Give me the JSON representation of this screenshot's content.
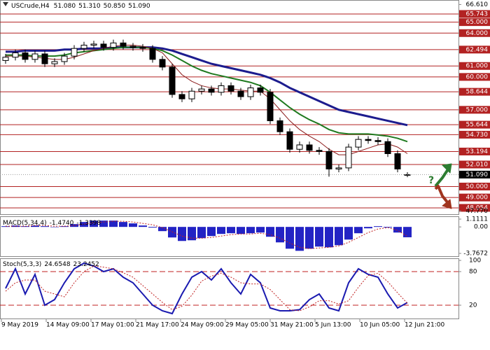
{
  "header": {
    "symbol": "USCrude,H4",
    "ohlc": [
      "51.080",
      "51.310",
      "50.850",
      "51.090"
    ]
  },
  "time_axis": [
    "9 May 2019",
    "14 May 09:00",
    "17 May 01:00",
    "21 May 17:00",
    "24 May 09:00",
    "29 May 05:00",
    "31 May 21:00",
    "5 Jun 13:00",
    "10 Jun 05:00",
    "12 Jun 21:00"
  ],
  "annotations": [
    "?"
  ],
  "chart_data": [
    {
      "type": "candlestick",
      "open": [
        61.5,
        61.8,
        62.2,
        61.6,
        62.1,
        61.2,
        61.4,
        61.9,
        62.6,
        62.9,
        63.0,
        62.7,
        63.1,
        62.8,
        62.7,
        62.6,
        61.6,
        60.9,
        58.4,
        58.0,
        58.7,
        58.9,
        58.6,
        59.2,
        58.7,
        58.2,
        59.0,
        58.6,
        56.0,
        55.0,
        53.4,
        53.8,
        53.3,
        53.2,
        51.6,
        51.7,
        53.6,
        54.3,
        54.2,
        54.1,
        53.0,
        51.08
      ],
      "high": [
        62.1,
        62.5,
        62.5,
        62.4,
        62.4,
        61.7,
        62.2,
        62.9,
        63.2,
        63.3,
        63.3,
        63.4,
        63.4,
        63.1,
        63.0,
        62.9,
        61.9,
        61.2,
        58.7,
        59.0,
        59.2,
        59.2,
        59.5,
        59.5,
        59.0,
        59.3,
        59.3,
        58.9,
        56.3,
        55.3,
        54.1,
        54.1,
        53.6,
        53.5,
        52.0,
        53.9,
        54.6,
        54.6,
        54.5,
        54.4,
        53.3,
        51.31
      ],
      "low": [
        61.2,
        61.5,
        61.3,
        61.3,
        60.9,
        60.9,
        61.1,
        61.6,
        62.3,
        62.6,
        62.4,
        62.4,
        62.5,
        62.4,
        62.3,
        61.3,
        60.6,
        58.1,
        57.7,
        57.7,
        58.4,
        58.3,
        58.3,
        58.4,
        57.9,
        57.9,
        58.3,
        55.7,
        54.7,
        53.1,
        53.1,
        53.0,
        52.9,
        50.9,
        51.3,
        51.4,
        53.3,
        53.9,
        53.8,
        52.7,
        51.3,
        50.85
      ],
      "close": [
        61.8,
        62.2,
        61.6,
        62.1,
        61.2,
        61.4,
        61.9,
        62.6,
        62.9,
        63.0,
        62.7,
        63.1,
        62.8,
        62.7,
        62.6,
        61.6,
        60.9,
        58.4,
        58.0,
        58.7,
        58.9,
        58.6,
        59.2,
        58.7,
        58.2,
        59.0,
        58.6,
        56.0,
        55.0,
        53.4,
        53.8,
        53.3,
        53.2,
        51.6,
        51.7,
        53.6,
        54.3,
        54.2,
        54.1,
        53.0,
        51.6,
        51.09
      ],
      "series": [
        {
          "color": "#1c1c8e",
          "values": [
            62.3,
            62.3,
            62.4,
            62.4,
            62.4,
            62.4,
            62.5,
            62.5,
            62.6,
            62.6,
            62.6,
            62.7,
            62.7,
            62.7,
            62.7,
            62.7,
            62.6,
            62.4,
            62.1,
            61.8,
            61.5,
            61.2,
            61.0,
            60.8,
            60.6,
            60.4,
            60.2,
            59.9,
            59.5,
            59.0,
            58.6,
            58.2,
            57.8,
            57.4,
            57.0,
            56.8,
            56.6,
            56.4,
            56.2,
            56.0,
            55.8,
            55.6
          ]
        },
        {
          "color": "#1f7a1f",
          "values": [
            62.0,
            62.0,
            62.0,
            61.9,
            61.9,
            61.9,
            62.0,
            62.2,
            62.3,
            62.4,
            62.5,
            62.6,
            62.7,
            62.7,
            62.7,
            62.6,
            62.4,
            62.0,
            61.5,
            61.0,
            60.6,
            60.3,
            60.1,
            59.9,
            59.7,
            59.5,
            59.2,
            58.6,
            57.9,
            57.2,
            56.6,
            56.1,
            55.7,
            55.2,
            54.9,
            54.8,
            54.8,
            54.8,
            54.7,
            54.6,
            54.4,
            54.1
          ]
        },
        {
          "color": "#8b1a1a",
          "values": [
            61.9,
            61.9,
            61.9,
            61.8,
            61.7,
            61.6,
            61.6,
            61.8,
            62.1,
            62.4,
            62.6,
            62.8,
            62.9,
            62.9,
            62.8,
            62.6,
            62.2,
            61.2,
            60.2,
            59.6,
            59.2,
            59.0,
            58.9,
            58.9,
            58.8,
            58.7,
            58.7,
            58.0,
            57.0,
            56.0,
            55.2,
            54.6,
            54.1,
            53.4,
            52.9,
            52.9,
            53.2,
            53.5,
            53.8,
            53.9,
            53.6,
            53.0
          ]
        }
      ],
      "ylim": [
        47.77,
        66.61
      ],
      "yticks": [
        {
          "value": 66.61,
          "label": "66.610"
        },
        {
          "value": 47.77,
          "label": "47.770"
        }
      ],
      "levels": [
        {
          "value": 65.743,
          "label": "65.743"
        },
        {
          "value": 65.0,
          "label": "65.000"
        },
        {
          "value": 64.0,
          "label": "64.000"
        },
        {
          "value": 62.494,
          "label": "62.494"
        },
        {
          "value": 61.0,
          "label": "61.000"
        },
        {
          "value": 60.0,
          "label": "60.000"
        },
        {
          "value": 58.644,
          "label": "58.644"
        },
        {
          "value": 57.0,
          "label": "57.000"
        },
        {
          "value": 55.644,
          "label": "55.644"
        },
        {
          "value": 54.73,
          "label": "54.730"
        },
        {
          "value": 53.194,
          "label": "53.194"
        },
        {
          "value": 52.01,
          "label": "52.010"
        },
        {
          "value": 50.0,
          "label": "50.000"
        },
        {
          "value": 49.0,
          "label": "49.000"
        },
        {
          "value": 48.054,
          "label": "48.054"
        }
      ],
      "level_color": "#b22222",
      "current": {
        "value": 51.09,
        "label": "51.090"
      }
    },
    {
      "type": "macd",
      "title": "MACD(5,34,4)",
      "readings": [
        "-1.4740",
        "-1.3398"
      ],
      "color": "#2323c4",
      "values": [
        0.1,
        0.2,
        0.1,
        0.2,
        0.1,
        0.0,
        0.1,
        0.4,
        0.7,
        0.9,
        0.9,
        0.9,
        0.7,
        0.5,
        0.2,
        -0.1,
        -0.6,
        -1.5,
        -2.0,
        -1.9,
        -1.6,
        -1.3,
        -1.0,
        -0.9,
        -1.0,
        -0.9,
        -0.8,
        -1.4,
        -2.2,
        -3.1,
        -3.4,
        -3.1,
        -2.8,
        -2.9,
        -2.6,
        -1.8,
        -0.9,
        -0.2,
        0.1,
        -0.1,
        -0.8,
        -1.474
      ],
      "signal": {
        "color": "#c02020",
        "values": [
          0.1,
          0.1,
          0.1,
          0.2,
          0.2,
          0.1,
          0.1,
          0.2,
          0.4,
          0.6,
          0.7,
          0.8,
          0.8,
          0.7,
          0.5,
          0.3,
          -0.1,
          -0.7,
          -1.3,
          -1.6,
          -1.6,
          -1.5,
          -1.3,
          -1.1,
          -1.0,
          -1.0,
          -0.9,
          -1.1,
          -1.6,
          -2.3,
          -2.9,
          -3.1,
          -3.0,
          -2.9,
          -2.7,
          -2.2,
          -1.5,
          -0.8,
          -0.3,
          -0.1,
          -0.5,
          -1.3398
        ]
      },
      "ylim": [
        -3.7672,
        1.1111
      ],
      "yticks": [
        1.1111,
        {
          "value": 0,
          "label": "0.00"
        },
        -3.7672
      ]
    },
    {
      "type": "stochastic",
      "title": "Stoch(5,3,3)",
      "readings": [
        "24.6548",
        "23.2452"
      ],
      "series": [
        {
          "color": "#1a1ab0",
          "values": [
            50,
            85,
            40,
            75,
            20,
            30,
            60,
            85,
            95,
            90,
            80,
            85,
            70,
            60,
            40,
            20,
            10,
            5,
            40,
            70,
            80,
            65,
            85,
            60,
            40,
            75,
            60,
            15,
            10,
            10,
            12,
            30,
            40,
            15,
            10,
            60,
            85,
            75,
            70,
            40,
            15,
            24.6548
          ]
        },
        {
          "color": "#c02020",
          "values": [
            45,
            60,
            65,
            65,
            45,
            40,
            35,
            60,
            80,
            90,
            88,
            85,
            78,
            70,
            55,
            40,
            25,
            12,
            18,
            38,
            63,
            72,
            77,
            70,
            60,
            58,
            58,
            48,
            30,
            12,
            10,
            17,
            28,
            28,
            22,
            28,
            52,
            73,
            77,
            62,
            42,
            23.2452
          ]
        }
      ],
      "ylim": [
        0,
        100
      ],
      "yticks": [
        100,
        80,
        20
      ],
      "dashed_levels": [
        80,
        20
      ]
    }
  ]
}
